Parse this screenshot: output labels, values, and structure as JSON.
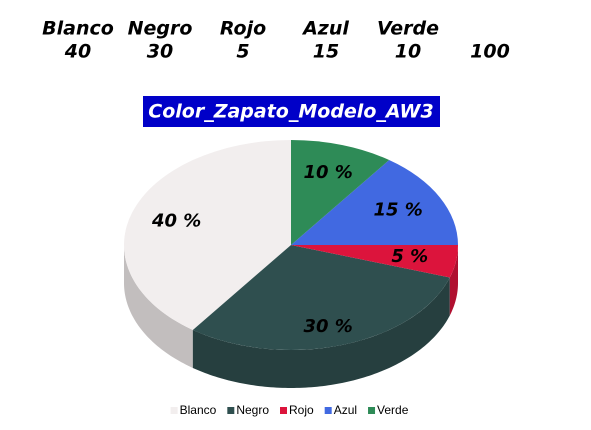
{
  "table": {
    "headers": [
      "Blanco",
      "Negro",
      "Rojo",
      "Azul",
      "Verde"
    ],
    "values": [
      40,
      30,
      5,
      15,
      10
    ],
    "total": 100
  },
  "chart_data": {
    "type": "pie",
    "title": "Color_Zapato_Modelo_AW3",
    "categories": [
      "Blanco",
      "Negro",
      "Rojo",
      "Azul",
      "Verde"
    ],
    "values": [
      40,
      30,
      5,
      15,
      10
    ],
    "value_labels": [
      "40 %",
      "30 %",
      "5 %",
      "15 %",
      "10 %"
    ],
    "colors": [
      "#f2eeee",
      "#2f4f4f",
      "#dc143c",
      "#4169e1",
      "#2e8b57"
    ],
    "legend": "bottom"
  }
}
